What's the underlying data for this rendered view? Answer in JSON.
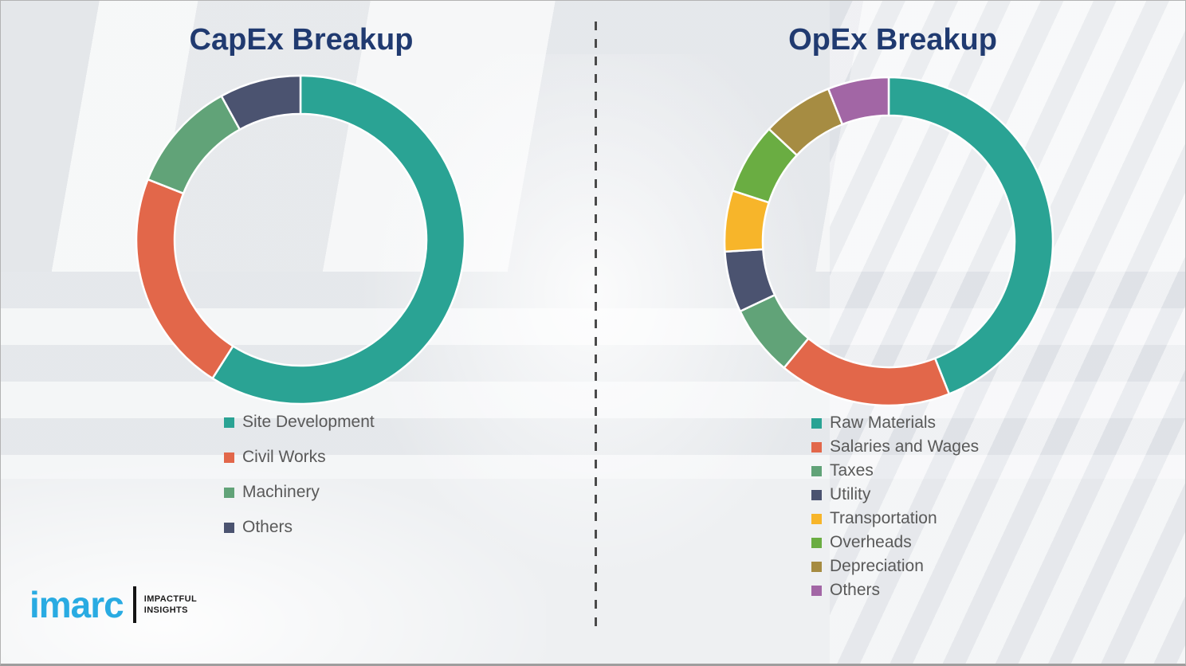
{
  "titles_color": "#203a70",
  "background_color": "#eef0f2",
  "legend_text_color": "#595959",
  "divider": {
    "style": "vertical-dashed",
    "color": "#4a4a4a"
  },
  "chart_data": [
    {
      "type": "pie",
      "donut": true,
      "title": "CapEx Breakup",
      "legend_position": "below-left",
      "start_angle_deg": 0,
      "direction": "clockwise",
      "values_are": "percent-estimated",
      "segments": [
        {
          "label": "Site Development",
          "value": 59,
          "color": "#2aa394"
        },
        {
          "label": "Civil Works",
          "value": 22,
          "color": "#e2674a"
        },
        {
          "label": "Machinery",
          "value": 11,
          "color": "#61a378"
        },
        {
          "label": "Others",
          "value": 8,
          "color": "#4b5370"
        }
      ]
    },
    {
      "type": "pie",
      "donut": true,
      "title": "OpEx Breakup",
      "legend_position": "below-left",
      "start_angle_deg": 0,
      "direction": "clockwise",
      "values_are": "percent-estimated",
      "segments": [
        {
          "label": "Raw Materials",
          "value": 44,
          "color": "#2aa394"
        },
        {
          "label": "Salaries and Wages",
          "value": 17,
          "color": "#e2674a"
        },
        {
          "label": "Taxes",
          "value": 7,
          "color": "#61a378"
        },
        {
          "label": "Utility",
          "value": 6,
          "color": "#4b5370"
        },
        {
          "label": "Transportation",
          "value": 6,
          "color": "#f7b52a"
        },
        {
          "label": "Overheads",
          "value": 7,
          "color": "#6aad42"
        },
        {
          "label": "Depreciation",
          "value": 7,
          "color": "#a68c42"
        },
        {
          "label": "Others",
          "value": 6,
          "color": "#a266a5"
        }
      ]
    }
  ],
  "branding": {
    "logo_text": "imarc",
    "logo_color": "#29abe2",
    "tagline_line1": "IMPACTFUL",
    "tagline_line2": "INSIGHTS"
  }
}
